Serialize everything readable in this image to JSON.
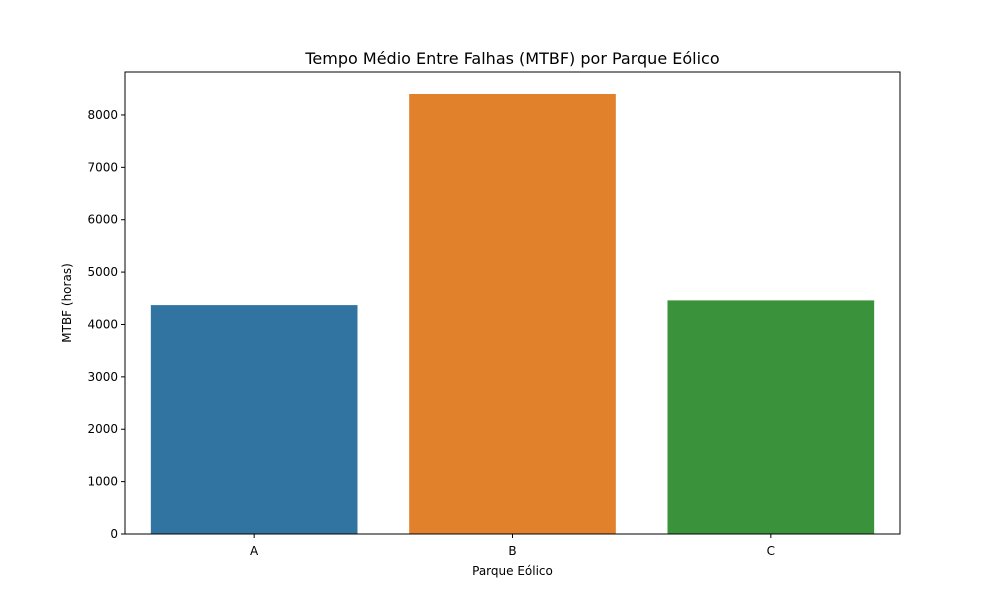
{
  "chart_data": {
    "type": "bar",
    "title": "Tempo Médio Entre Falhas (MTBF) por Parque Eólico",
    "xlabel": "Parque Eólico",
    "ylabel": "MTBF (horas)",
    "categories": [
      "A",
      "B",
      "C"
    ],
    "values": [
      4370,
      8400,
      4460
    ],
    "colors": [
      "#3274a1",
      "#e1812c",
      "#3a923a"
    ],
    "ylim": [
      0,
      8820
    ],
    "yticks": [
      0,
      1000,
      2000,
      3000,
      4000,
      5000,
      6000,
      7000,
      8000
    ],
    "grid": false,
    "legend": "none"
  }
}
